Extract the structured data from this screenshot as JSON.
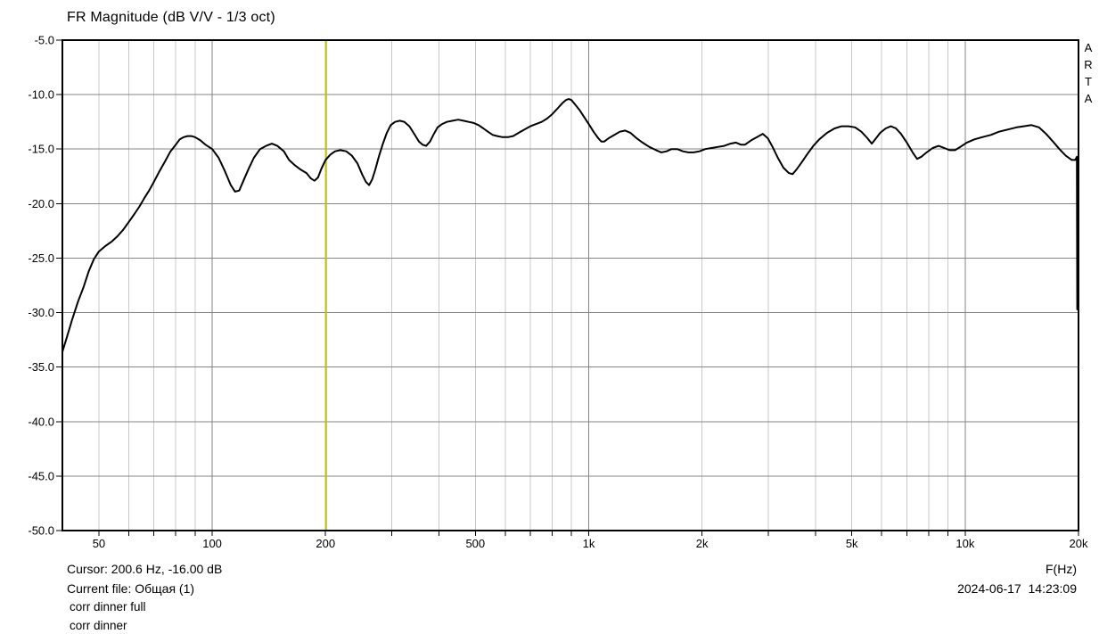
{
  "title": "FR Magnitude (dB V/V - 1/3 oct)",
  "watermark": "A\nR\nT\nA",
  "footer": {
    "cursor_label": "Cursor: 200.6 Hz, -16.00 dB",
    "xaxis_label": "F(Hz)",
    "current_file_label": "Current file: Общая (1)",
    "datetime": "2024-06-17  14:23:09",
    "overlays": [
      "corr dinner full",
      "corr dinner"
    ]
  },
  "colors": {
    "background": "#ffffff",
    "curve": "#000000",
    "border": "#000000",
    "grid_minor": "#c9c9c9",
    "grid_major": "#858585",
    "cursor": "#c2c00e",
    "text": "#000000"
  },
  "chart_data": {
    "type": "line",
    "title": "FR Magnitude (dB V/V - 1/3 oct)",
    "xlabel": "F(Hz)",
    "ylabel": "",
    "x_scale": "log",
    "xlim": [
      40,
      20000
    ],
    "ylim": [
      -50,
      -5
    ],
    "grid": true,
    "y_ticks": [
      {
        "v": -5,
        "label": "-5.0"
      },
      {
        "v": -10,
        "label": "-10.0"
      },
      {
        "v": -15,
        "label": "-15.0"
      },
      {
        "v": -20,
        "label": "-20.0"
      },
      {
        "v": -25,
        "label": "-25.0"
      },
      {
        "v": -30,
        "label": "-30.0"
      },
      {
        "v": -35,
        "label": "-35.0"
      },
      {
        "v": -40,
        "label": "-40.0"
      },
      {
        "v": -45,
        "label": "-45.0"
      },
      {
        "v": -50,
        "label": "-50.0"
      }
    ],
    "x_ticks": [
      {
        "f": 50,
        "label": "50"
      },
      {
        "f": 100,
        "label": "100"
      },
      {
        "f": 200,
        "label": "200"
      },
      {
        "f": 500,
        "label": "500"
      },
      {
        "f": 1000,
        "label": "1k"
      },
      {
        "f": 2000,
        "label": "2k"
      },
      {
        "f": 5000,
        "label": "5k"
      },
      {
        "f": 10000,
        "label": "10k"
      },
      {
        "f": 20000,
        "label": "20k"
      }
    ],
    "gridlines_vertical_minor": [
      50,
      60,
      70,
      80,
      90,
      200,
      300,
      400,
      500,
      600,
      700,
      800,
      900,
      2000,
      3000,
      4000,
      5000,
      6000,
      7000,
      8000,
      9000
    ],
    "gridlines_vertical_major": [
      100,
      1000,
      10000
    ],
    "gridlines_horizontal": [
      -10,
      -15,
      -20,
      -25,
      -30,
      -35,
      -40,
      -45
    ],
    "cursor": {
      "freq_hz": 200.6,
      "level_db": -16.0
    },
    "series": [
      {
        "name": "corr dinner full",
        "points": [
          [
            40,
            -33.6
          ],
          [
            41,
            -32.4
          ],
          [
            42.5,
            -30.6
          ],
          [
            44,
            -29
          ],
          [
            45.5,
            -27.7
          ],
          [
            47,
            -26.2
          ],
          [
            48.5,
            -25.1
          ],
          [
            50,
            -24.4
          ],
          [
            52,
            -23.9
          ],
          [
            54,
            -23.5
          ],
          [
            56,
            -23
          ],
          [
            58,
            -22.4
          ],
          [
            60,
            -21.7
          ],
          [
            62,
            -21
          ],
          [
            64,
            -20.3
          ],
          [
            66,
            -19.5
          ],
          [
            68,
            -18.8
          ],
          [
            70,
            -18
          ],
          [
            72.5,
            -17
          ],
          [
            75,
            -16.1
          ],
          [
            77.5,
            -15.2
          ],
          [
            80,
            -14.6
          ],
          [
            82,
            -14.1
          ],
          [
            84,
            -13.9
          ],
          [
            86,
            -13.8
          ],
          [
            88,
            -13.8
          ],
          [
            90,
            -13.9
          ],
          [
            93,
            -14.2
          ],
          [
            96,
            -14.6
          ],
          [
            100,
            -15
          ],
          [
            104,
            -15.8
          ],
          [
            108,
            -17
          ],
          [
            112,
            -18.3
          ],
          [
            115,
            -18.9
          ],
          [
            118,
            -18.8
          ],
          [
            121,
            -17.9
          ],
          [
            125,
            -16.8
          ],
          [
            129,
            -15.8
          ],
          [
            134,
            -15
          ],
          [
            139,
            -14.7
          ],
          [
            144,
            -14.5
          ],
          [
            149,
            -14.7
          ],
          [
            155,
            -15.2
          ],
          [
            160,
            -16
          ],
          [
            166,
            -16.5
          ],
          [
            172,
            -16.9
          ],
          [
            178,
            -17.2
          ],
          [
            183,
            -17.7
          ],
          [
            187,
            -17.9
          ],
          [
            191,
            -17.6
          ],
          [
            195,
            -16.8
          ],
          [
            200,
            -16
          ],
          [
            206,
            -15.5
          ],
          [
            212,
            -15.2
          ],
          [
            219,
            -15.1
          ],
          [
            227,
            -15.2
          ],
          [
            235,
            -15.6
          ],
          [
            243,
            -16.3
          ],
          [
            250,
            -17.3
          ],
          [
            256,
            -18
          ],
          [
            261,
            -18.3
          ],
          [
            266,
            -17.8
          ],
          [
            271,
            -16.9
          ],
          [
            277,
            -15.7
          ],
          [
            284,
            -14.5
          ],
          [
            291,
            -13.5
          ],
          [
            298,
            -12.8
          ],
          [
            306,
            -12.5
          ],
          [
            315,
            -12.4
          ],
          [
            324,
            -12.5
          ],
          [
            334,
            -12.9
          ],
          [
            344,
            -13.6
          ],
          [
            354,
            -14.3
          ],
          [
            362,
            -14.6
          ],
          [
            370,
            -14.7
          ],
          [
            379,
            -14.3
          ],
          [
            388,
            -13.6
          ],
          [
            397,
            -13
          ],
          [
            408,
            -12.7
          ],
          [
            420,
            -12.5
          ],
          [
            435,
            -12.4
          ],
          [
            450,
            -12.3
          ],
          [
            465,
            -12.4
          ],
          [
            480,
            -12.5
          ],
          [
            495,
            -12.6
          ],
          [
            510,
            -12.8
          ],
          [
            525,
            -13.1
          ],
          [
            540,
            -13.4
          ],
          [
            556,
            -13.7
          ],
          [
            572,
            -13.8
          ],
          [
            590,
            -13.9
          ],
          [
            610,
            -13.9
          ],
          [
            630,
            -13.8
          ],
          [
            652,
            -13.5
          ],
          [
            675,
            -13.2
          ],
          [
            700,
            -12.9
          ],
          [
            725,
            -12.7
          ],
          [
            750,
            -12.5
          ],
          [
            775,
            -12.2
          ],
          [
            800,
            -11.8
          ],
          [
            825,
            -11.3
          ],
          [
            850,
            -10.8
          ],
          [
            870,
            -10.5
          ],
          [
            885,
            -10.4
          ],
          [
            900,
            -10.5
          ],
          [
            920,
            -10.9
          ],
          [
            945,
            -11.4
          ],
          [
            970,
            -12
          ],
          [
            1000,
            -12.7
          ],
          [
            1030,
            -13.4
          ],
          [
            1060,
            -14
          ],
          [
            1080,
            -14.3
          ],
          [
            1100,
            -14.3
          ],
          [
            1130,
            -14
          ],
          [
            1170,
            -13.7
          ],
          [
            1210,
            -13.4
          ],
          [
            1250,
            -13.3
          ],
          [
            1290,
            -13.5
          ],
          [
            1340,
            -14
          ],
          [
            1390,
            -14.4
          ],
          [
            1450,
            -14.8
          ],
          [
            1510,
            -15.1
          ],
          [
            1560,
            -15.3
          ],
          [
            1610,
            -15.2
          ],
          [
            1660,
            -15
          ],
          [
            1720,
            -15
          ],
          [
            1780,
            -15.2
          ],
          [
            1840,
            -15.3
          ],
          [
            1900,
            -15.3
          ],
          [
            1970,
            -15.2
          ],
          [
            2040,
            -15
          ],
          [
            2120,
            -14.9
          ],
          [
            2200,
            -14.8
          ],
          [
            2290,
            -14.7
          ],
          [
            2380,
            -14.5
          ],
          [
            2460,
            -14.4
          ],
          [
            2540,
            -14.6
          ],
          [
            2600,
            -14.6
          ],
          [
            2700,
            -14.2
          ],
          [
            2800,
            -13.9
          ],
          [
            2900,
            -13.6
          ],
          [
            2990,
            -14
          ],
          [
            3080,
            -14.8
          ],
          [
            3180,
            -15.8
          ],
          [
            3290,
            -16.7
          ],
          [
            3400,
            -17.2
          ],
          [
            3480,
            -17.3
          ],
          [
            3560,
            -16.9
          ],
          [
            3680,
            -16.2
          ],
          [
            3800,
            -15.5
          ],
          [
            3950,
            -14.7
          ],
          [
            4100,
            -14.1
          ],
          [
            4300,
            -13.5
          ],
          [
            4500,
            -13.1
          ],
          [
            4700,
            -12.9
          ],
          [
            4900,
            -12.9
          ],
          [
            5100,
            -13
          ],
          [
            5300,
            -13.4
          ],
          [
            5500,
            -14
          ],
          [
            5650,
            -14.5
          ],
          [
            5800,
            -14
          ],
          [
            5950,
            -13.5
          ],
          [
            6150,
            -13.1
          ],
          [
            6350,
            -12.9
          ],
          [
            6550,
            -13.1
          ],
          [
            6750,
            -13.6
          ],
          [
            7000,
            -14.4
          ],
          [
            7250,
            -15.3
          ],
          [
            7450,
            -15.9
          ],
          [
            7650,
            -15.7
          ],
          [
            7900,
            -15.3
          ],
          [
            8200,
            -14.9
          ],
          [
            8500,
            -14.7
          ],
          [
            8800,
            -14.9
          ],
          [
            9100,
            -15.1
          ],
          [
            9400,
            -15.1
          ],
          [
            9700,
            -14.8
          ],
          [
            10100,
            -14.4
          ],
          [
            10600,
            -14.1
          ],
          [
            11100,
            -13.9
          ],
          [
            11700,
            -13.7
          ],
          [
            12300,
            -13.4
          ],
          [
            13000,
            -13.2
          ],
          [
            13700,
            -13
          ],
          [
            14300,
            -12.9
          ],
          [
            15000,
            -12.8
          ],
          [
            15700,
            -13
          ],
          [
            16400,
            -13.6
          ],
          [
            17100,
            -14.3
          ],
          [
            17800,
            -15
          ],
          [
            18500,
            -15.6
          ],
          [
            19200,
            -16
          ],
          [
            19600,
            -16
          ],
          [
            19800,
            -15.7
          ],
          [
            19850,
            -29.7
          ]
        ]
      }
    ],
    "overlay_names": [
      "corr dinner full",
      "corr dinner"
    ]
  }
}
